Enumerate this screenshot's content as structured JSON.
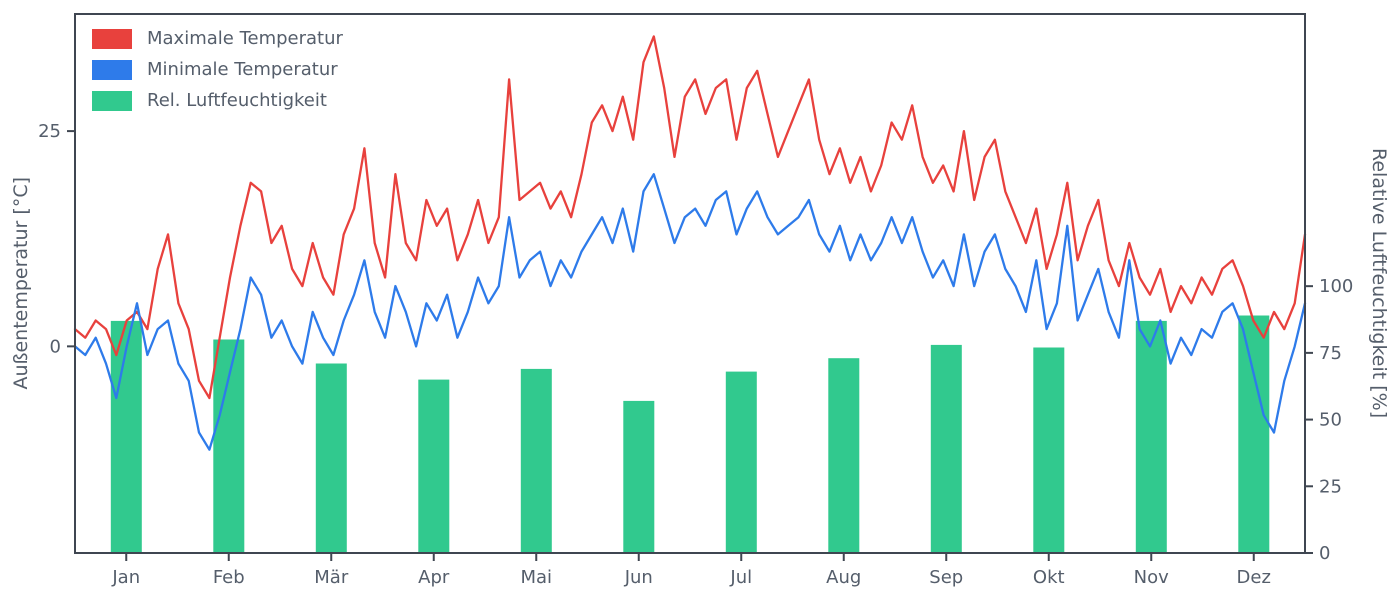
{
  "chart_data": {
    "type": "line+bar",
    "title": "",
    "x_axis": {
      "tick_labels": [
        "Jan",
        "Feb",
        "Mär",
        "Apr",
        "Mai",
        "Jun",
        "Jul",
        "Aug",
        "Sep",
        "Okt",
        "Nov",
        "Dez"
      ]
    },
    "left_axis": {
      "label": "Außentemperatur [°C]",
      "ticks": [
        0,
        25
      ],
      "range": [
        -24,
        38.6
      ]
    },
    "right_axis": {
      "label": "Relative Luftfeuchtigkeit [%]",
      "ticks": [
        0,
        25,
        50,
        75,
        100
      ],
      "range": [
        0,
        202
      ]
    },
    "legend": [
      {
        "label": "Maximale Temperatur",
        "color": "#e8413d"
      },
      {
        "label": "Minimale Temperatur",
        "color": "#2e7bea"
      },
      {
        "label": "Rel. Luftfeuchtigkeit",
        "color": "#31c98e"
      }
    ],
    "series": [
      {
        "name": "Maximale Temperatur",
        "type": "line",
        "axis": "left",
        "color": "#e8413d",
        "values": [
          2,
          1,
          3,
          2,
          -1,
          3,
          4,
          2,
          9,
          13,
          5,
          2,
          -4,
          -6,
          1,
          8,
          14,
          19,
          18,
          12,
          14,
          9,
          7,
          12,
          8,
          6,
          13,
          16,
          23,
          12,
          8,
          20,
          12,
          10,
          17,
          14,
          16,
          10,
          13,
          17,
          12,
          15,
          31,
          17,
          18,
          19,
          16,
          18,
          15,
          20,
          26,
          28,
          25,
          29,
          24,
          33,
          36,
          30,
          22,
          29,
          31,
          27,
          30,
          31,
          24,
          30,
          32,
          27,
          22,
          25,
          28,
          31,
          24,
          20,
          23,
          19,
          22,
          18,
          21,
          26,
          24,
          28,
          22,
          19,
          21,
          18,
          25,
          17,
          22,
          24,
          18,
          15,
          12,
          16,
          9,
          13,
          19,
          10,
          14,
          17,
          10,
          7,
          12,
          8,
          6,
          9,
          4,
          7,
          5,
          8,
          6,
          9,
          10,
          7,
          3,
          1,
          4,
          2,
          5,
          13
        ]
      },
      {
        "name": "Minimale Temperatur",
        "type": "line",
        "axis": "left",
        "color": "#2e7bea",
        "values": [
          0,
          -1,
          1,
          -2,
          -6,
          0,
          5,
          -1,
          2,
          3,
          -2,
          -4,
          -10,
          -12,
          -8,
          -3,
          2,
          8,
          6,
          1,
          3,
          0,
          -2,
          4,
          1,
          -1,
          3,
          6,
          10,
          4,
          1,
          7,
          4,
          0,
          5,
          3,
          6,
          1,
          4,
          8,
          5,
          7,
          15,
          8,
          10,
          11,
          7,
          10,
          8,
          11,
          13,
          15,
          12,
          16,
          11,
          18,
          20,
          16,
          12,
          15,
          16,
          14,
          17,
          18,
          13,
          16,
          18,
          15,
          13,
          14,
          15,
          17,
          13,
          11,
          14,
          10,
          13,
          10,
          12,
          15,
          12,
          15,
          11,
          8,
          10,
          7,
          13,
          7,
          11,
          13,
          9,
          7,
          4,
          10,
          2,
          5,
          14,
          3,
          6,
          9,
          4,
          1,
          10,
          2,
          0,
          3,
          -2,
          1,
          -1,
          2,
          1,
          4,
          5,
          2,
          -3,
          -8,
          -10,
          -4,
          0,
          5
        ]
      },
      {
        "name": "Rel. Luftfeuchtigkeit",
        "type": "bar",
        "axis": "right",
        "color": "#31c98e",
        "categories": [
          "Jan",
          "Feb",
          "Mär",
          "Apr",
          "Mai",
          "Jun",
          "Jul",
          "Aug",
          "Sep",
          "Okt",
          "Nov",
          "Dez"
        ],
        "values": [
          87,
          80,
          71,
          65,
          69,
          57,
          68,
          73,
          78,
          77,
          87,
          89
        ]
      }
    ],
    "style": {
      "spine_color": "#3f4651",
      "text_color": "#555e6b",
      "grid": false,
      "legend_position": "upper-left"
    }
  }
}
